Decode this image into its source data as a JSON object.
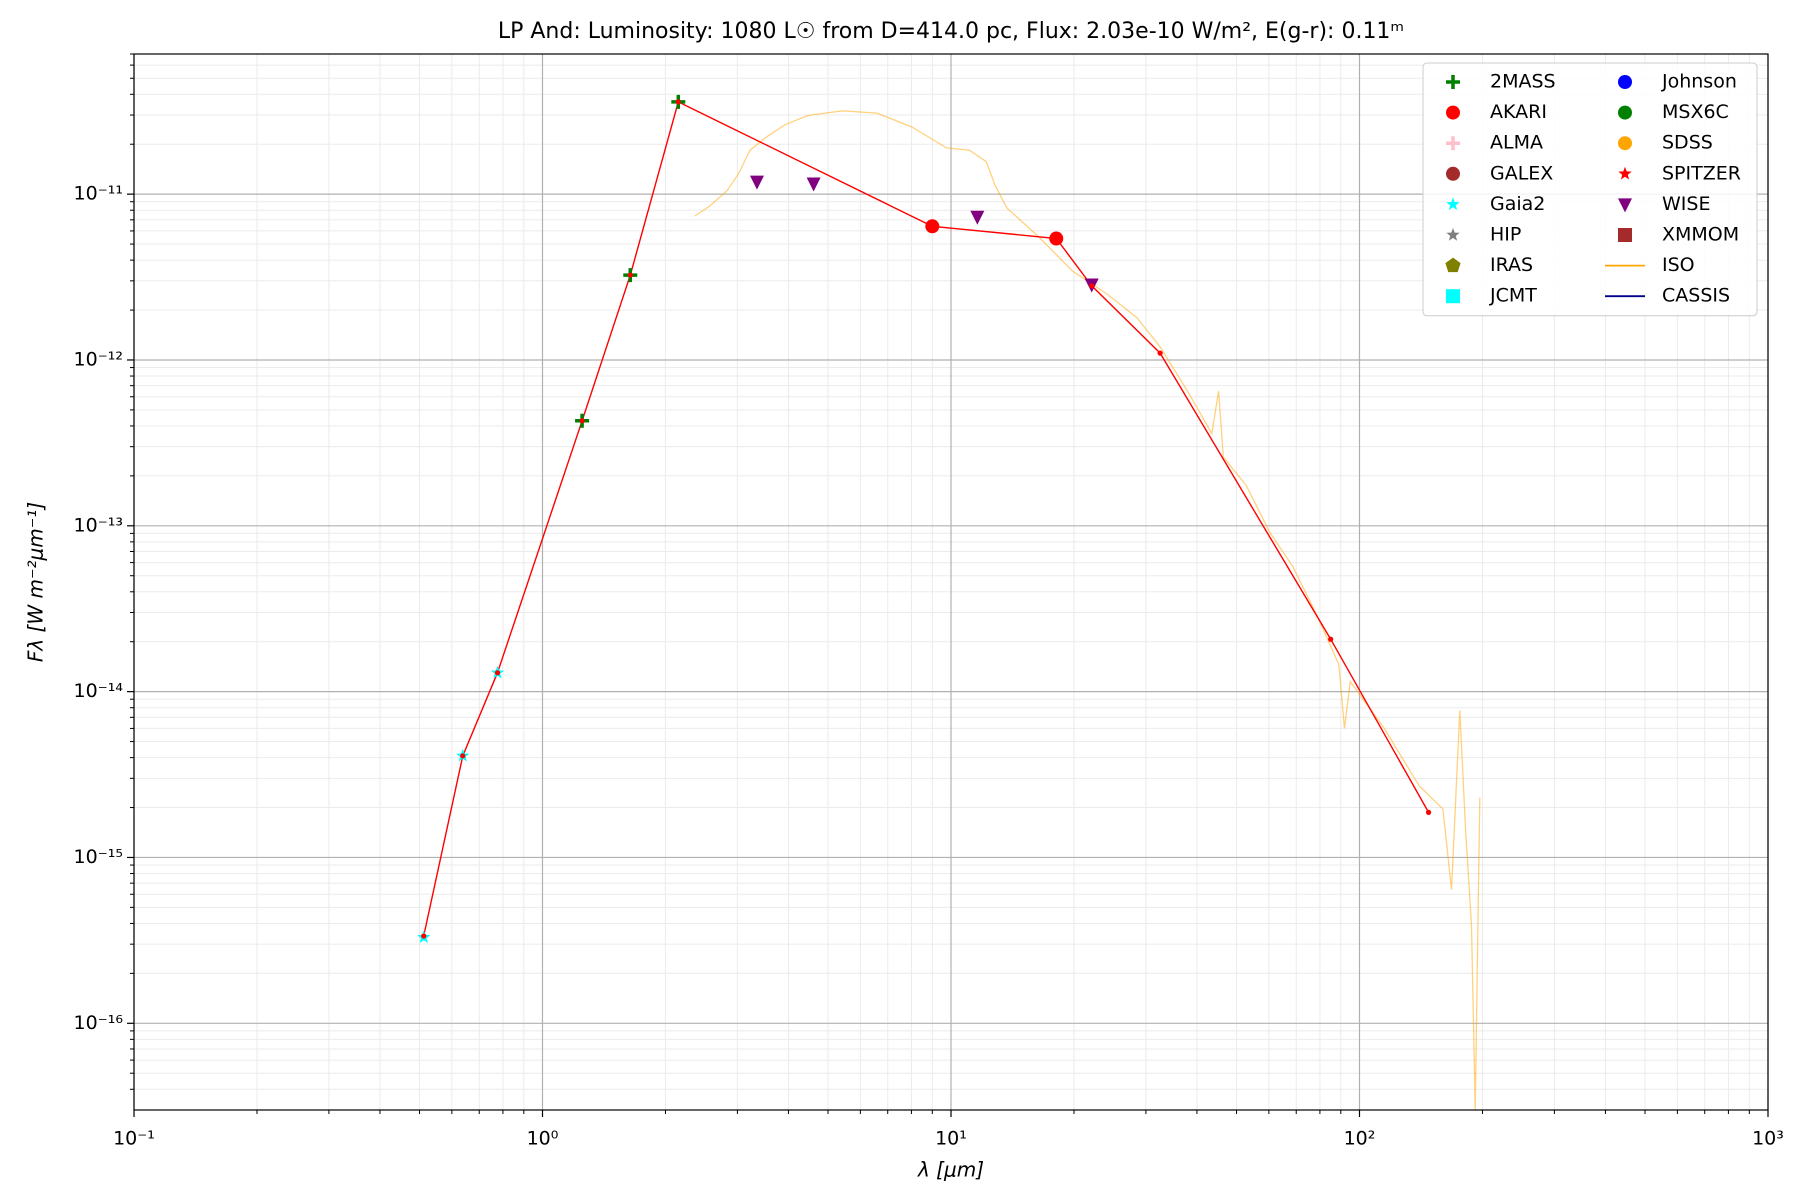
{
  "chart_data": {
    "type": "scatter",
    "title": "LP And:  Luminosity: 1080 L☉ from D=414.0 pc, Flux: 2.03e-10 W/m², E(g-r): 0.11ᵐ",
    "x_label": "λ [μm]",
    "y_label": "Fλ [W m⁻²μm⁻¹]",
    "xscale": "log",
    "yscale": "log",
    "xlim": [
      0.1,
      1000
    ],
    "ylim": [
      3e-17,
      7e-11
    ],
    "xticks": [
      {
        "value": 0.1,
        "label": "10⁻¹"
      },
      {
        "value": 1,
        "label": "10⁰"
      },
      {
        "value": 10,
        "label": "10¹"
      },
      {
        "value": 100,
        "label": "10²"
      },
      {
        "value": 1000,
        "label": "10³"
      }
    ],
    "yticks": [
      {
        "value": 1e-16,
        "label": "10⁻¹⁶"
      },
      {
        "value": 1e-15,
        "label": "10⁻¹⁵"
      },
      {
        "value": 1e-14,
        "label": "10⁻¹⁴"
      },
      {
        "value": 1e-13,
        "label": "10⁻¹³"
      },
      {
        "value": 1e-12,
        "label": "10⁻¹²"
      },
      {
        "value": 1e-11,
        "label": "10⁻¹¹"
      }
    ],
    "grid": true,
    "minor_grid": true,
    "legend": "upper right",
    "series": [
      {
        "name": "2MASS",
        "color": "#008000",
        "marker": "plus",
        "x": [
          1.25,
          1.64,
          2.15
        ],
        "values": [
          4.3e-13,
          3.25e-12,
          3.6e-11
        ]
      },
      {
        "name": "AKARI",
        "color": "#ff0000",
        "marker": "circle",
        "x": [
          9.0,
          18.1
        ],
        "values": [
          6.4e-12,
          5.4e-12
        ]
      },
      {
        "name": "ALMA",
        "color": "#ffc0cb",
        "marker": "plus",
        "x": [],
        "values": []
      },
      {
        "name": "GALEX",
        "color": "#a52a2a",
        "marker": "circle",
        "x": [],
        "values": []
      },
      {
        "name": "Gaia2",
        "color": "#00ffff",
        "marker": "star",
        "x": [
          0.512,
          0.638,
          0.776
        ],
        "values": [
          3.3e-16,
          4.1e-15,
          1.3e-14
        ]
      },
      {
        "name": "HIP",
        "color": "#808080",
        "marker": "star",
        "x": [],
        "values": []
      },
      {
        "name": "IRAS",
        "color": "#808000",
        "marker": "pentagon",
        "x": [],
        "values": []
      },
      {
        "name": "JCMT",
        "color": "#00ffff",
        "marker": "square",
        "x": [],
        "values": []
      },
      {
        "name": "Johnson",
        "color": "#0000ff",
        "marker": "circle",
        "x": [],
        "values": []
      },
      {
        "name": "MSX6C",
        "color": "#008000",
        "marker": "circle",
        "x": [],
        "values": []
      },
      {
        "name": "SDSS",
        "color": "#ffa500",
        "marker": "circle",
        "x": [],
        "values": []
      },
      {
        "name": "SPITZER",
        "color": "#ff0000",
        "marker": "star",
        "x": [],
        "values": []
      },
      {
        "name": "WISE",
        "color": "#800080",
        "marker": "triangle-down",
        "x": [
          3.35,
          4.61,
          11.6,
          22.1
        ],
        "values": [
          1.19e-11,
          1.16e-11,
          7.3e-12,
          2.85e-12
        ]
      },
      {
        "name": "XMMOM",
        "color": "#a52a2a",
        "marker": "square",
        "x": [],
        "values": []
      },
      {
        "name": "ISO",
        "color": "#ffa500",
        "marker": "line",
        "x": [
          2.36,
          2.57,
          2.83,
          3.02,
          3.22,
          3.55,
          3.92,
          4.46,
          5.42,
          6.59,
          8.02,
          9.75,
          11.1,
          12.2,
          12.8,
          13.7,
          16.4,
          19.9,
          24.2,
          28.5,
          32.5,
          38.2,
          43.5,
          45.2,
          46.4,
          52.8,
          60.2,
          68.6,
          78.1,
          89.0,
          91.9,
          94.9,
          115,
          140,
          160,
          168,
          176,
          182,
          188,
          192,
          197
        ],
        "values": [
          7.38e-12,
          8.5e-12,
          1.05e-11,
          1.33e-11,
          1.84e-11,
          2.23e-11,
          2.62e-11,
          2.98e-11,
          3.18e-11,
          3.08e-11,
          2.54e-11,
          1.9e-11,
          1.84e-11,
          1.57e-11,
          1.14e-11,
          8.25e-12,
          5.52e-12,
          3.41e-12,
          2.48e-12,
          1.8e-12,
          1.2e-12,
          6.3e-13,
          3.6e-13,
          6.5e-13,
          2.6e-13,
          1.75e-13,
          9.2e-14,
          5.7e-14,
          3e-14,
          1.46e-14,
          6e-15,
          1.15e-14,
          6e-15,
          2.7e-15,
          1.96e-15,
          6.4e-16,
          7.7e-15,
          1.42e-15,
          3.9e-16,
          3e-17,
          2.3e-15
        ]
      },
      {
        "name": "CASSIS",
        "color": "#00008b",
        "marker": "line",
        "x": [],
        "values": []
      },
      {
        "color": "#ff0000",
        "marker": "dot-line",
        "x": [
          0.512,
          0.638,
          0.776,
          1.25,
          1.64,
          2.15,
          9.0,
          18.1,
          22.1,
          32.5,
          85,
          147.6
        ],
        "values": [
          3.36e-16,
          4.1e-15,
          1.3e-14,
          4.3e-13,
          3.25e-12,
          3.6e-11,
          6.4e-12,
          5.4e-12,
          2.8e-12,
          1.1e-12,
          2.07e-14,
          1.87e-15
        ]
      }
    ]
  }
}
